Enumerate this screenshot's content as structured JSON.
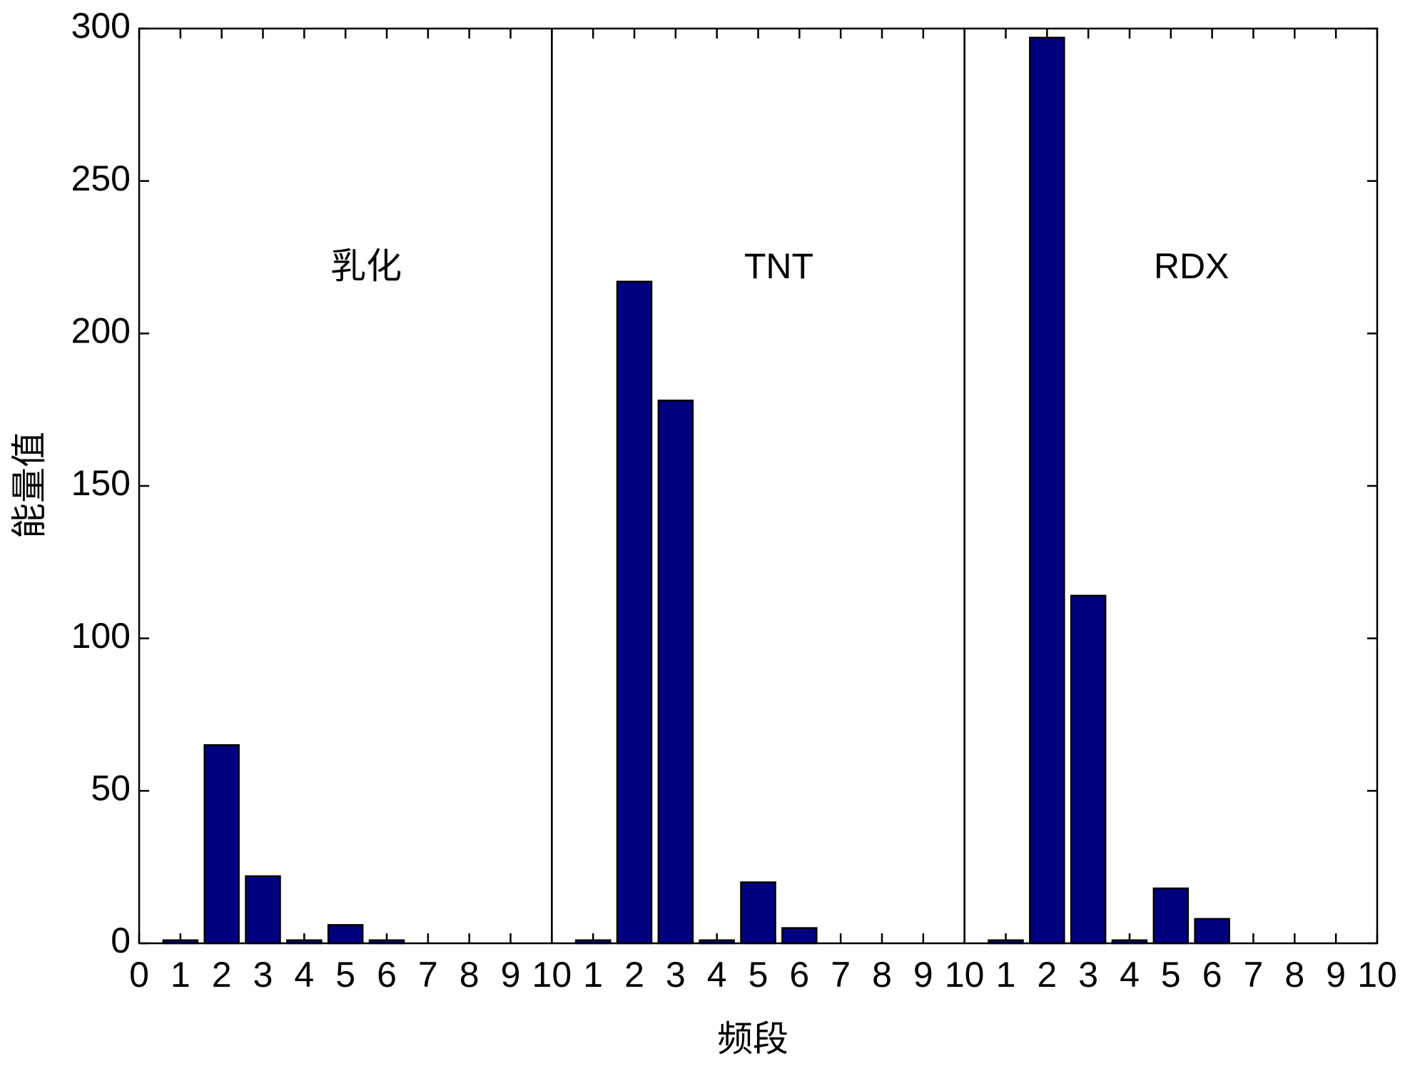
{
  "chart_data": {
    "type": "bar",
    "xlabel": "频段",
    "ylabel": "能量值",
    "color": "#000080",
    "ylim": [
      0,
      300
    ],
    "yticks": [
      0,
      50,
      100,
      150,
      200,
      250,
      300
    ],
    "panels": [
      {
        "label": "乳化",
        "x": [
          1,
          2,
          3,
          4,
          5,
          6
        ],
        "values": [
          1,
          65,
          22,
          1,
          6,
          1
        ],
        "xlim": [
          0,
          10
        ],
        "xticks": [
          0,
          1,
          2,
          3,
          4,
          5,
          6,
          7,
          8,
          9,
          10
        ]
      },
      {
        "label": "TNT",
        "x": [
          1,
          2,
          3,
          4,
          5,
          6
        ],
        "values": [
          1,
          217,
          178,
          1,
          20,
          5
        ],
        "xlim": [
          0,
          10
        ],
        "xticks": [
          1,
          2,
          3,
          4,
          5,
          6,
          7,
          8,
          9,
          10
        ]
      },
      {
        "label": "RDX",
        "x": [
          1,
          2,
          3,
          4,
          5,
          6
        ],
        "values": [
          1,
          297,
          114,
          1,
          18,
          8
        ],
        "xlim": [
          0,
          10
        ],
        "xticks": [
          1,
          2,
          3,
          4,
          5,
          6,
          7,
          8,
          9,
          10
        ]
      }
    ]
  }
}
